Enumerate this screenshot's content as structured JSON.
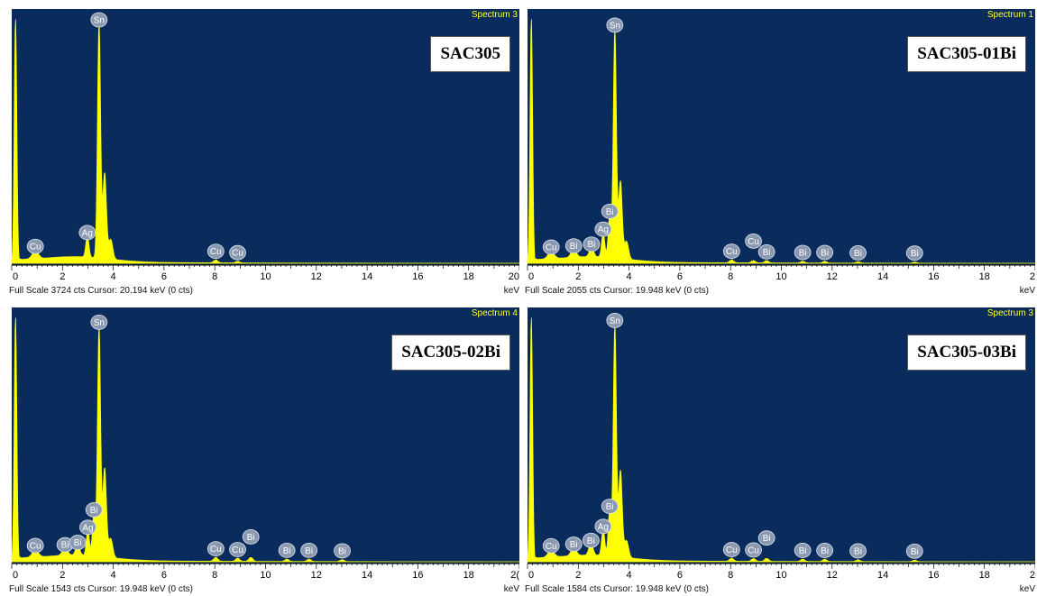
{
  "colors": {
    "plot_bg": "#0a2c5c",
    "spectrum": "#ffff00",
    "peak_label_fill": "#8a99b0",
    "peak_label_text": "#ffffff",
    "title_text": "#ffff33"
  },
  "chart_data": [
    {
      "type": "line",
      "spectrum_title": "Spectrum 3",
      "sample": "SAC305",
      "footer": "Full Scale 3724 cts  Cursor: 20.194 keV (0 cts)",
      "x_unit": "keV",
      "xlim": [
        0,
        20
      ],
      "x_ticks": [
        "0",
        "2",
        "4",
        "6",
        "8",
        "10",
        "12",
        "14",
        "16",
        "18",
        "20"
      ],
      "ylim": [
        0,
        3724
      ],
      "grid": false,
      "peaks": [
        {
          "x": 0.15,
          "y": 3724,
          "w": 0.05
        },
        {
          "x": 0.93,
          "y": 120,
          "w": 0.12
        },
        {
          "x": 2.98,
          "y": 330,
          "w": 0.06
        },
        {
          "x": 3.44,
          "y": 3570,
          "w": 0.06
        },
        {
          "x": 3.66,
          "y": 1300,
          "w": 0.07
        },
        {
          "x": 3.9,
          "y": 300,
          "w": 0.08
        },
        {
          "x": 8.04,
          "y": 45,
          "w": 0.08
        },
        {
          "x": 8.9,
          "y": 25,
          "w": 0.08
        }
      ],
      "annotations": [
        {
          "label": "Sn",
          "x": 3.44,
          "y": 3570
        },
        {
          "label": "Cu",
          "x": 0.93,
          "y": 120
        },
        {
          "label": "Ag",
          "x": 2.98,
          "y": 330
        },
        {
          "label": "Cu",
          "x": 8.04,
          "y": 45
        },
        {
          "label": "Cu",
          "x": 8.9,
          "y": 25
        }
      ]
    },
    {
      "type": "line",
      "spectrum_title": "Spectrum 1",
      "sample": "SAC305-01Bi",
      "footer": "Full Scale 2055 cts  Cursor: 19.948 keV (0 cts)",
      "x_unit": "keV",
      "xlim": [
        0,
        20
      ],
      "x_ticks": [
        "0",
        "2",
        "4",
        "6",
        "8",
        "10",
        "12",
        "14",
        "16",
        "18",
        "2"
      ],
      "ylim": [
        0,
        2055
      ],
      "grid": false,
      "peaks": [
        {
          "x": 0.15,
          "y": 2055,
          "w": 0.05
        },
        {
          "x": 0.93,
          "y": 60,
          "w": 0.12
        },
        {
          "x": 1.82,
          "y": 70,
          "w": 0.1
        },
        {
          "x": 2.52,
          "y": 85,
          "w": 0.08
        },
        {
          "x": 2.98,
          "y": 210,
          "w": 0.06
        },
        {
          "x": 3.24,
          "y": 360,
          "w": 0.06
        },
        {
          "x": 3.44,
          "y": 1920,
          "w": 0.06
        },
        {
          "x": 3.66,
          "y": 650,
          "w": 0.07
        },
        {
          "x": 3.9,
          "y": 150,
          "w": 0.08
        },
        {
          "x": 8.04,
          "y": 25,
          "w": 0.08
        },
        {
          "x": 8.9,
          "y": 20,
          "w": 0.08
        },
        {
          "x": 9.42,
          "y": 20,
          "w": 0.08
        },
        {
          "x": 10.84,
          "y": 15,
          "w": 0.08
        },
        {
          "x": 11.71,
          "y": 15,
          "w": 0.08
        },
        {
          "x": 13.02,
          "y": 12,
          "w": 0.08
        },
        {
          "x": 15.25,
          "y": 10,
          "w": 0.08
        }
      ],
      "annotations": [
        {
          "label": "Sn",
          "x": 3.44,
          "y": 1920
        },
        {
          "label": "Bi",
          "x": 3.24,
          "y": 360
        },
        {
          "label": "Ag",
          "x": 2.98,
          "y": 210
        },
        {
          "label": "Cu",
          "x": 0.93,
          "y": 60
        },
        {
          "label": "Bi",
          "x": 1.82,
          "y": 70
        },
        {
          "label": "Bi",
          "x": 2.52,
          "y": 85
        },
        {
          "label": "Cu",
          "x": 8.04,
          "y": 25
        },
        {
          "label": "Cu",
          "x": 8.9,
          "y": 110
        },
        {
          "label": "Bi",
          "x": 9.42,
          "y": 20
        },
        {
          "label": "Bi",
          "x": 10.84,
          "y": 15
        },
        {
          "label": "Bi",
          "x": 11.71,
          "y": 15
        },
        {
          "label": "Bi",
          "x": 13.02,
          "y": 12
        },
        {
          "label": "Bi",
          "x": 15.25,
          "y": 10
        }
      ]
    },
    {
      "type": "line",
      "spectrum_title": "Spectrum 4",
      "sample": "SAC305-02Bi",
      "footer": "Full Scale 1543 cts  Cursor: 19.948 keV (0 cts)",
      "x_unit": "keV",
      "xlim": [
        0,
        20
      ],
      "x_ticks": [
        "0",
        "2",
        "4",
        "6",
        "8",
        "10",
        "12",
        "14",
        "16",
        "18",
        "2("
      ],
      "ylim": [
        0,
        1543
      ],
      "grid": false,
      "peaks": [
        {
          "x": 0.15,
          "y": 1543,
          "w": 0.05
        },
        {
          "x": 0.93,
          "y": 45,
          "w": 0.12
        },
        {
          "x": 2.1,
          "y": 50,
          "w": 0.1
        },
        {
          "x": 2.6,
          "y": 65,
          "w": 0.08
        },
        {
          "x": 3.0,
          "y": 160,
          "w": 0.06
        },
        {
          "x": 3.24,
          "y": 270,
          "w": 0.06
        },
        {
          "x": 3.44,
          "y": 1450,
          "w": 0.06
        },
        {
          "x": 3.66,
          "y": 560,
          "w": 0.07
        },
        {
          "x": 3.9,
          "y": 120,
          "w": 0.08
        },
        {
          "x": 8.04,
          "y": 25,
          "w": 0.08
        },
        {
          "x": 8.9,
          "y": 20,
          "w": 0.08
        },
        {
          "x": 9.42,
          "y": 25,
          "w": 0.08
        },
        {
          "x": 10.84,
          "y": 15,
          "w": 0.08
        },
        {
          "x": 11.71,
          "y": 15,
          "w": 0.08
        },
        {
          "x": 13.02,
          "y": 12,
          "w": 0.08
        }
      ],
      "annotations": [
        {
          "label": "Sn",
          "x": 3.44,
          "y": 1450
        },
        {
          "label": "Bi",
          "x": 3.24,
          "y": 270
        },
        {
          "label": "Ag",
          "x": 3.0,
          "y": 160
        },
        {
          "label": "Cu",
          "x": 0.93,
          "y": 45
        },
        {
          "label": "Bi",
          "x": 2.1,
          "y": 50
        },
        {
          "label": "Bi",
          "x": 2.6,
          "y": 65
        },
        {
          "label": "Cu",
          "x": 8.04,
          "y": 25
        },
        {
          "label": "Cu",
          "x": 8.9,
          "y": 20
        },
        {
          "label": "Bi",
          "x": 9.42,
          "y": 100
        },
        {
          "label": "Bi",
          "x": 10.84,
          "y": 15
        },
        {
          "label": "Bi",
          "x": 11.71,
          "y": 15
        },
        {
          "label": "Bi",
          "x": 13.02,
          "y": 12
        }
      ]
    },
    {
      "type": "line",
      "spectrum_title": "Spectrum 3",
      "sample": "SAC305-03Bi",
      "footer": "Full Scale 1584 cts  Cursor: 19.948 keV (0 cts)",
      "x_unit": "keV",
      "xlim": [
        0,
        20
      ],
      "x_ticks": [
        "0",
        "2",
        "4",
        "6",
        "8",
        "10",
        "12",
        "14",
        "16",
        "18",
        "2"
      ],
      "ylim": [
        0,
        1584
      ],
      "grid": false,
      "peaks": [
        {
          "x": 0.15,
          "y": 1584,
          "w": 0.05
        },
        {
          "x": 0.93,
          "y": 45,
          "w": 0.12
        },
        {
          "x": 1.82,
          "y": 55,
          "w": 0.1
        },
        {
          "x": 2.5,
          "y": 80,
          "w": 0.08
        },
        {
          "x": 2.98,
          "y": 170,
          "w": 0.06
        },
        {
          "x": 3.24,
          "y": 300,
          "w": 0.06
        },
        {
          "x": 3.44,
          "y": 1500,
          "w": 0.06
        },
        {
          "x": 3.66,
          "y": 560,
          "w": 0.07
        },
        {
          "x": 3.9,
          "y": 110,
          "w": 0.08
        },
        {
          "x": 8.04,
          "y": 20,
          "w": 0.08
        },
        {
          "x": 8.9,
          "y": 18,
          "w": 0.08
        },
        {
          "x": 9.42,
          "y": 20,
          "w": 0.08
        },
        {
          "x": 10.84,
          "y": 15,
          "w": 0.08
        },
        {
          "x": 11.71,
          "y": 15,
          "w": 0.08
        },
        {
          "x": 13.02,
          "y": 12,
          "w": 0.08
        },
        {
          "x": 15.25,
          "y": 10,
          "w": 0.08
        }
      ],
      "annotations": [
        {
          "label": "Sn",
          "x": 3.44,
          "y": 1500
        },
        {
          "label": "Bi",
          "x": 3.24,
          "y": 300
        },
        {
          "label": "Ag",
          "x": 2.98,
          "y": 170
        },
        {
          "label": "Cu",
          "x": 0.93,
          "y": 45
        },
        {
          "label": "Bi",
          "x": 1.82,
          "y": 55
        },
        {
          "label": "Bi",
          "x": 2.5,
          "y": 80
        },
        {
          "label": "Cu",
          "x": 8.04,
          "y": 20
        },
        {
          "label": "Cu",
          "x": 8.9,
          "y": 18
        },
        {
          "label": "Bi",
          "x": 9.42,
          "y": 95
        },
        {
          "label": "Bi",
          "x": 10.84,
          "y": 15
        },
        {
          "label": "Bi",
          "x": 11.71,
          "y": 15
        },
        {
          "label": "Bi",
          "x": 13.02,
          "y": 12
        },
        {
          "label": "Bi",
          "x": 15.25,
          "y": 10
        }
      ]
    }
  ]
}
